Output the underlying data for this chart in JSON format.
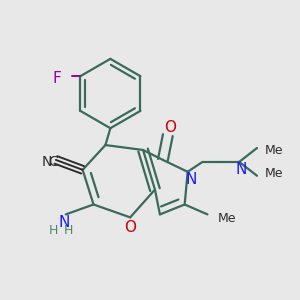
{
  "background_color": "#e8e8e8",
  "bond_color": "#3a6a5a",
  "bond_width": 1.6,
  "dbo": 0.012,
  "figsize": [
    3.0,
    3.0
  ],
  "dpi": 100,
  "xlim": [
    0,
    300
  ],
  "ylim": [
    0,
    300
  ]
}
